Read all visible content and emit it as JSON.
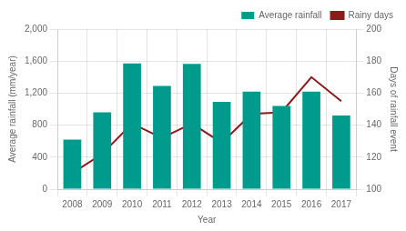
{
  "chart_data": {
    "type": "bar",
    "xlabel": "Year",
    "ylabel": "Average rainfall (mm/year)",
    "y2label": "Days of rainfall event",
    "categories": [
      "2008",
      "2009",
      "2010",
      "2011",
      "2012",
      "2013",
      "2014",
      "2015",
      "2016",
      "2017"
    ],
    "series": [
      {
        "name": "Average rainfall",
        "type": "bar",
        "color": "#009B8D",
        "values": [
          620,
          960,
          1570,
          1290,
          1565,
          1090,
          1220,
          1040,
          1220,
          920
        ]
      },
      {
        "name": "Rainy days",
        "type": "line",
        "color": "#8B1A1A",
        "axis": "y2",
        "values": [
          110,
          122,
          141,
          132,
          141,
          129,
          147,
          148,
          170,
          155
        ]
      }
    ],
    "ylim": [
      0,
      2000
    ],
    "yticks": [
      0,
      400,
      800,
      1200,
      1600,
      2000
    ],
    "y2lim": [
      100,
      200
    ],
    "y2ticks": [
      100,
      120,
      140,
      160,
      180,
      200
    ],
    "grid": true,
    "legend": "upper right"
  }
}
